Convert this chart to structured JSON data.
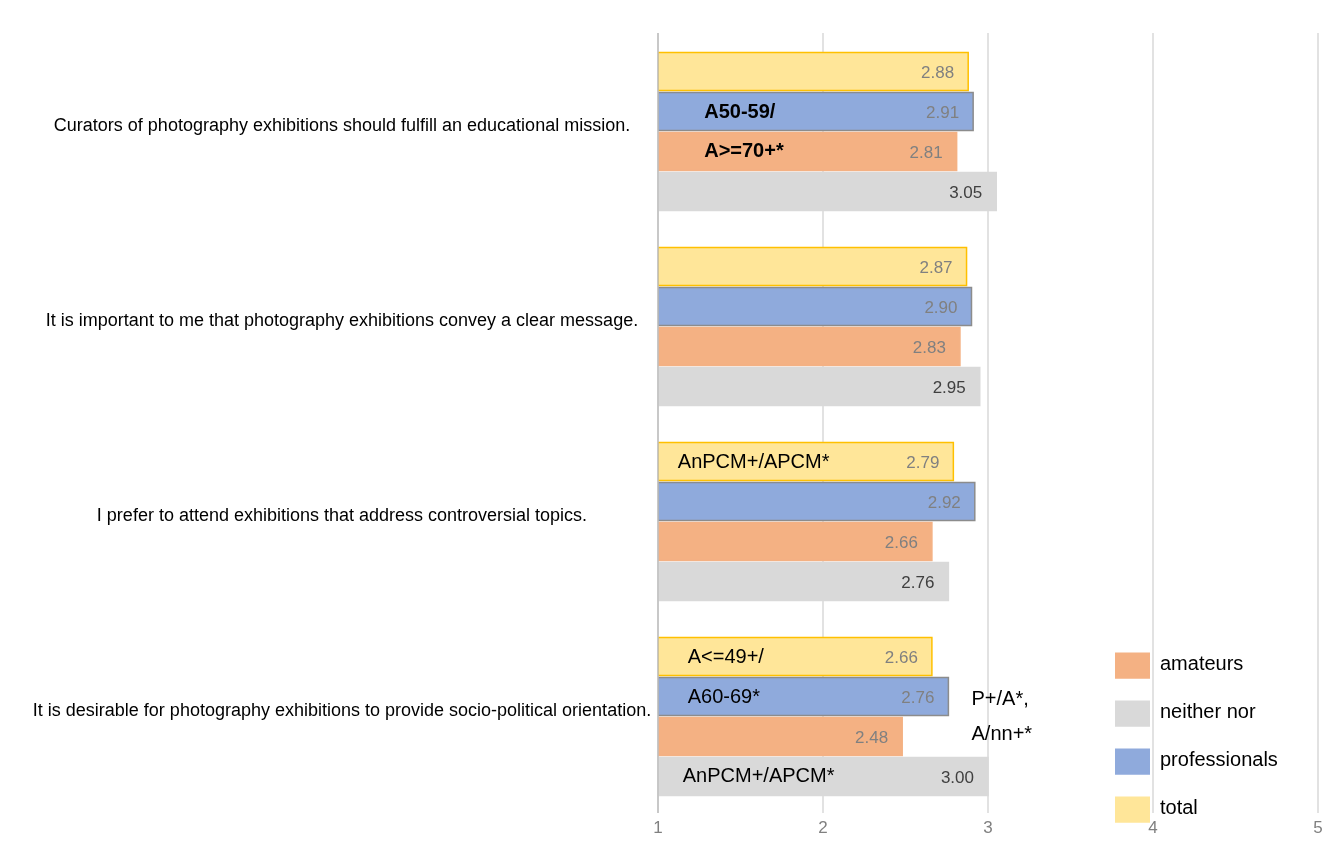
{
  "chart_data": {
    "type": "bar",
    "orientation": "horizontal",
    "categories": [
      "Curators of photography exhibitions should fulfill an educational mission.",
      "It is important to me that photography exhibitions convey a clear message.",
      "I prefer to attend exhibitions that address controversial topics.",
      "It is desirable for photography exhibitions to provide socio-political orientation."
    ],
    "series": [
      {
        "name": "total",
        "color": "#ffe699",
        "values": [
          2.88,
          2.87,
          2.79,
          2.66
        ],
        "value_labels": [
          "2.88",
          "2.87",
          "2.79",
          "2.66"
        ]
      },
      {
        "name": "professionals",
        "color": "#8faadc",
        "values": [
          2.91,
          2.9,
          2.92,
          2.76
        ],
        "value_labels": [
          "2.91",
          "2.90",
          "2.92",
          "2.76"
        ]
      },
      {
        "name": "amateurs",
        "color": "#f4b183",
        "values": [
          2.81,
          2.83,
          2.66,
          2.48
        ],
        "value_labels": [
          "2.81",
          "2.83",
          "2.66",
          "2.48"
        ]
      },
      {
        "name": "neither nor",
        "color": "#d9d9d9",
        "values": [
          3.05,
          2.95,
          2.76,
          3.0
        ],
        "value_labels": [
          "3.05",
          "2.95",
          "2.76",
          "3.00"
        ]
      }
    ],
    "xlim": [
      1,
      5
    ],
    "xticks": [
      1,
      2,
      3,
      4,
      5
    ],
    "grid": "x",
    "legend": "bottom right",
    "annotations": [
      "A50-59/",
      "A>=70+*",
      "AnPCM+/APCM*",
      "A<=49+/",
      "A60-69*",
      "P+/A*,",
      "A/nn+*",
      "AnPCM+/APCM*"
    ]
  }
}
